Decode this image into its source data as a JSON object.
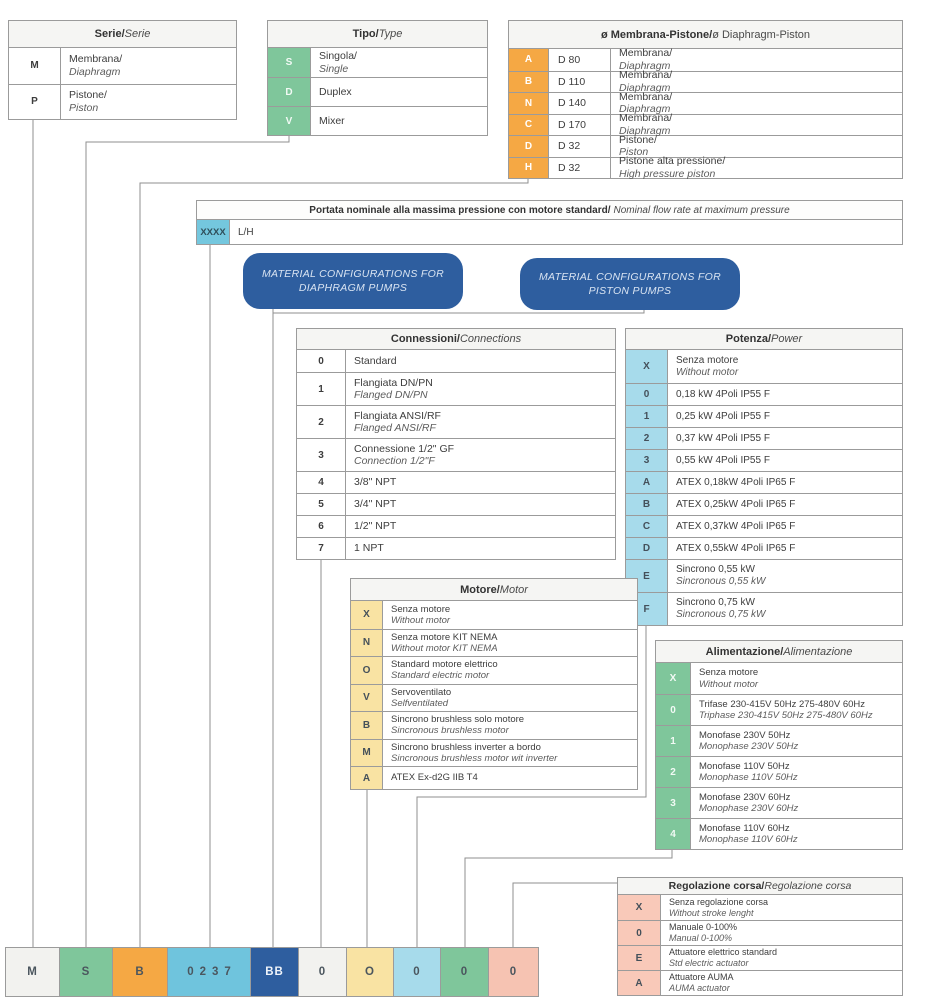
{
  "colors": {
    "border": "#9b9b9b",
    "line": "#8f8f8f",
    "gray_cell": "#f2f2ef",
    "green": "#7fc69b",
    "orange": "#f5a844",
    "sky_blue": "#6fc4dd",
    "pale_blue": "#a7dbeb",
    "dark_blue": "#2e5e9f",
    "yellow": "#f9e3a3",
    "salmon": "#f6c3b2"
  },
  "tables": {
    "serie": {
      "title_it": "Serie/",
      "title_en": "Serie",
      "code_bg": "#ffffff",
      "code_fg": "#3d3d3d",
      "rows": [
        {
          "code": "M",
          "it": "Membrana/ ",
          "en": "Diaphragm",
          "inline": true
        },
        {
          "code": "P",
          "it": "Pistone/ ",
          "en": "Piston",
          "inline": true
        }
      ]
    },
    "tipo": {
      "title_it": "Tipo/",
      "title_en": "Type",
      "code_bg": "#7fc69b",
      "code_fg": "#f2faf5",
      "rows": [
        {
          "code": "S",
          "it": "Singola/",
          "en": "Single",
          "inline": true
        },
        {
          "code": "D",
          "it": "Duplex"
        },
        {
          "code": "V",
          "it": "Mixer"
        }
      ]
    },
    "diametro": {
      "title_it": "ø Membrana-Pistone/",
      "title_en": "ø Diaphragm-Piston",
      "code_bg": "#f5a844",
      "code_fg": "#ffffff",
      "rows": [
        {
          "code": "A",
          "size": "D 80",
          "it": "Membrana/",
          "en": "Diaphragm",
          "inline": true
        },
        {
          "code": "B",
          "size": "D 110",
          "it": "Membrana/",
          "en": "Diaphragm",
          "inline": true
        },
        {
          "code": "N",
          "size": "D 140",
          "it": "Membrana/",
          "en": "Diaphragm",
          "inline": true
        },
        {
          "code": "C",
          "size": "D 170",
          "it": "Membrana/",
          "en": "Diaphragm",
          "inline": true
        },
        {
          "code": "D",
          "size": "D 32",
          "it": "Pistone/",
          "en": "Piston",
          "inline": true
        },
        {
          "code": "H",
          "size": "D 32",
          "it": "Pistone alta pressione/",
          "en": "High pressure piston",
          "inline": true
        }
      ]
    },
    "portata": {
      "title_it": "Portata nominale alla massima pressione con motore standard/",
      "title_en": "Nominal flow rate at maximum pressure",
      "code": "XXXX",
      "unit": "L/H"
    },
    "connessioni": {
      "title_it": "Connessioni/",
      "title_en": "Connections",
      "code_bg": "#ffffff",
      "code_fg": "#3d3d3d",
      "rows": [
        {
          "code": "0",
          "it": "Standard"
        },
        {
          "code": "1",
          "it": "Flangiata DN/PN",
          "en": "Flanged DN/PN"
        },
        {
          "code": "2",
          "it": "Flangiata ANSI/RF",
          "en": "Flanged ANSI/RF"
        },
        {
          "code": "3",
          "it": "Connessione 1/2\" GF",
          "en": "Connection 1/2\"F"
        },
        {
          "code": "4",
          "it": "3/8\" NPT"
        },
        {
          "code": "5",
          "it": "3/4\" NPT"
        },
        {
          "code": "6",
          "it": "1/2\" NPT"
        },
        {
          "code": "7",
          "it": "1 NPT"
        }
      ]
    },
    "potenza": {
      "title_it": "Potenza/",
      "title_en": "Power",
      "code_bg": "#a7dbeb",
      "code_fg": "#44505a",
      "rows": [
        {
          "code": "X",
          "it": "Senza motore",
          "en": "Without motor"
        },
        {
          "code": "0",
          "it": "0,18 kW 4Poli IP55 F"
        },
        {
          "code": "1",
          "it": "0,25 kW 4Poli IP55 F"
        },
        {
          "code": "2",
          "it": "0,37 kW 4Poli IP55 F"
        },
        {
          "code": "3",
          "it": "0,55 kW 4Poli IP55 F"
        },
        {
          "code": "A",
          "it": "ATEX 0,18kW 4Poli IP65 F"
        },
        {
          "code": "B",
          "it": "ATEX 0,25kW 4Poli IP65 F"
        },
        {
          "code": "C",
          "it": "ATEX 0,37kW 4Poli IP65 F"
        },
        {
          "code": "D",
          "it": "ATEX 0,55kW 4Poli IP65 F"
        },
        {
          "code": "E",
          "it": "Sincrono 0,55 kW",
          "en": "Sincronous 0,55 kW"
        },
        {
          "code": "F",
          "it": "Sincrono 0,75 kW",
          "en": "Sincronous 0,75 kW"
        }
      ]
    },
    "motore": {
      "title_it": "Motore/",
      "title_en": "Motor",
      "code_bg": "#f9e3a3",
      "code_fg": "#44505a",
      "rows": [
        {
          "code": "X",
          "it": "Senza motore",
          "en": "Without motor"
        },
        {
          "code": "N",
          "it": "Senza motore KIT NEMA",
          "en": "Without motor KIT NEMA"
        },
        {
          "code": "O",
          "it": "Standard motore elettrico",
          "en": "Standard electric motor"
        },
        {
          "code": "V",
          "it": "Servoventilato",
          "en": "Selfventilated"
        },
        {
          "code": "B",
          "it": "Sincrono brushless solo motore",
          "en": "Sincronous brushless motor"
        },
        {
          "code": "M",
          "it": "Sincrono brushless inverter a bordo",
          "en": "Sincronous brushless motor wit inverter"
        },
        {
          "code": "A",
          "it": "ATEX Ex-d2G IIB T4"
        }
      ]
    },
    "alimentazione": {
      "title_it": "Alimentazione/",
      "title_en": "Alimentazione",
      "code_bg": "#7fc69b",
      "code_fg": "#f2faf5",
      "rows": [
        {
          "code": "X",
          "it": "Senza motore",
          "en": "Without motor"
        },
        {
          "code": "0",
          "it": "Trifase 230-415V 50Hz 275-480V 60Hz",
          "en": "Triphase 230-415V 50Hz 275-480V 60Hz"
        },
        {
          "code": "1",
          "it": "Monofase 230V 50Hz",
          "en": "Monophase 230V 50Hz"
        },
        {
          "code": "2",
          "it": "Monofase 110V 50Hz",
          "en": "Monophase 110V 50Hz"
        },
        {
          "code": "3",
          "it": "Monofase 230V 60Hz",
          "en": "Monophase 230V 60Hz"
        },
        {
          "code": "4",
          "it": "Monofase 110V 60Hz",
          "en": "Monophase 110V 60Hz"
        }
      ]
    },
    "regolazione": {
      "title_it": "Regolazione corsa/",
      "title_en": "Regolazione corsa",
      "code_bg": "#f9c9b9",
      "code_fg": "#44505a",
      "rows": [
        {
          "code": "X",
          "it": "Senza regolazione corsa",
          "en": "Without stroke lenght"
        },
        {
          "code": "0",
          "it": "Manuale 0-100%",
          "en": "Manual 0-100%"
        },
        {
          "code": "E",
          "it": "Attuatore elettrico standard",
          "en": "Std electric actuator"
        },
        {
          "code": "A",
          "it": "Attuatore AUMA",
          "en": "AUMA actuator"
        }
      ]
    }
  },
  "material_boxes": {
    "diaphragm": "MATERIAL CONFIGURATIONS FOR DIAPHRAGM PUMPS",
    "piston": "MATERIAL CONFIGURATIONS FOR PISTON PUMPS"
  },
  "bottom_code": [
    {
      "name": "serie",
      "value": "M",
      "color_key": "gray_cell"
    },
    {
      "name": "tipo",
      "value": "S",
      "color_key": "green"
    },
    {
      "name": "diametro",
      "value": "B",
      "color_key": "orange"
    },
    {
      "name": "portata",
      "value": "0237",
      "color_key": "sky_blue",
      "spaced": true
    },
    {
      "name": "material",
      "value": "BB",
      "color_key": "dark_blue",
      "light": true
    },
    {
      "name": "connessioni",
      "value": "0",
      "color_key": "gray_cell"
    },
    {
      "name": "motore",
      "value": "O",
      "color_key": "yellow"
    },
    {
      "name": "potenza",
      "value": "0",
      "color_key": "pale_blue"
    },
    {
      "name": "alimentazione",
      "value": "0",
      "color_key": "green"
    },
    {
      "name": "regolazione",
      "value": "0",
      "color_key": "salmon"
    }
  ]
}
